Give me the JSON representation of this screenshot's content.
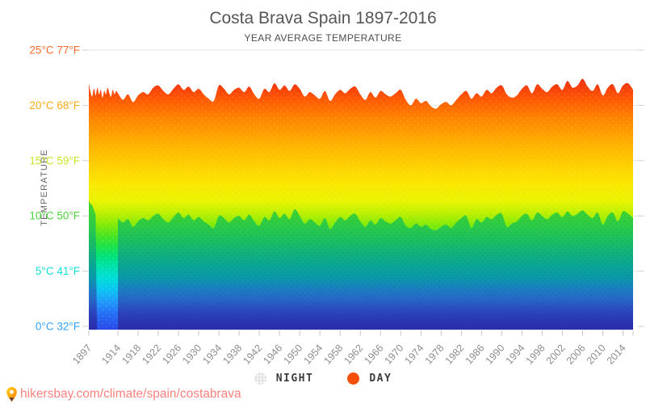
{
  "header": {
    "title": "Costa Brava Spain 1897-2016",
    "subtitle": "YEAR AVERAGE TEMPERATURE"
  },
  "chart_data": {
    "type": "area",
    "title": "Costa Brava Spain 1897-2016",
    "subtitle": "YEAR AVERAGE TEMPERATURE",
    "ylabel": "TEMPERATURE",
    "ylim": [
      0,
      25
    ],
    "grid": "horizontal gridlines every 5°C",
    "legend_position": "bottom",
    "x_range": [
      1897,
      2016
    ],
    "year_start": 1897,
    "night_data_gap": [
      1898,
      1913
    ],
    "x_axis_tick_years": [
      "1897",
      "1914",
      "1918",
      "1922",
      "1926",
      "1930",
      "1934",
      "1938",
      "1942",
      "1946",
      "1950",
      "1954",
      "1958",
      "1962",
      "1966",
      "1970",
      "1974",
      "1978",
      "1982",
      "1986",
      "1990",
      "1994",
      "1998",
      "2002",
      "2006",
      "2010",
      "2014"
    ],
    "y_axis_ticks": [
      {
        "value": 0,
        "label_c": "0°C",
        "label_f": "32°F",
        "color": "#31a3f5"
      },
      {
        "value": 5,
        "label_c": "5°C",
        "label_f": "41°F",
        "color": "#12dfdb"
      },
      {
        "value": 10,
        "label_c": "10°C",
        "label_f": "50°F",
        "color": "#4fd33c"
      },
      {
        "value": 15,
        "label_c": "15°C",
        "label_f": "59°F",
        "color": "#cde42f"
      },
      {
        "value": 20,
        "label_c": "20°C",
        "label_f": "68°F",
        "color": "#ffab19"
      },
      {
        "value": 25,
        "label_c": "25°C",
        "label_f": "77°F",
        "color": "#fb6d2e"
      }
    ],
    "series": [
      {
        "name": "DAY",
        "unit": "°C",
        "values": [
          22.0,
          21.2,
          20.8,
          21.5,
          20.9,
          21.6,
          21.0,
          21.4,
          20.7,
          21.3,
          21.0,
          21.6,
          21.1,
          20.8,
          21.4,
          21.0,
          21.3,
          21.1,
          20.5,
          21.0,
          20.3,
          20.9,
          21.2,
          21.0,
          21.6,
          21.8,
          21.3,
          21.0,
          21.5,
          21.9,
          21.4,
          21.7,
          21.2,
          21.5,
          21.0,
          20.6,
          20.4,
          21.8,
          21.5,
          21.0,
          21.4,
          21.6,
          21.2,
          21.7,
          21.0,
          20.6,
          21.5,
          21.2,
          22.0,
          21.4,
          21.8,
          21.3,
          21.9,
          21.5,
          20.8,
          21.2,
          20.9,
          20.6,
          21.3,
          20.4,
          21.0,
          21.4,
          21.1,
          21.5,
          21.7,
          21.0,
          20.5,
          21.2,
          20.7,
          21.3,
          21.0,
          20.8,
          21.1,
          21.4,
          20.5,
          20.0,
          20.6,
          20.2,
          20.4,
          19.9,
          19.7,
          20.1,
          20.3,
          20.0,
          20.5,
          21.0,
          21.3,
          20.6,
          21.1,
          20.8,
          21.4,
          21.1,
          21.6,
          21.8,
          21.0,
          20.7,
          20.9,
          21.5,
          21.8,
          21.1,
          21.9,
          21.5,
          21.2,
          21.7,
          21.9,
          21.4,
          22.2,
          21.6,
          21.8,
          22.4,
          21.7,
          21.3,
          21.9,
          20.9,
          21.6,
          21.9,
          21.1,
          21.8,
          22.0,
          21.4
        ]
      },
      {
        "name": "NIGHT",
        "unit": "°C",
        "values": [
          11.3,
          null,
          null,
          null,
          null,
          null,
          null,
          null,
          null,
          null,
          null,
          null,
          null,
          null,
          null,
          null,
          null,
          9.8,
          9.4,
          9.7,
          9.0,
          9.5,
          9.8,
          9.6,
          10.0,
          10.2,
          9.7,
          9.4,
          9.9,
          10.3,
          9.8,
          10.1,
          9.6,
          9.9,
          9.5,
          9.2,
          8.9,
          10.0,
          9.8,
          9.4,
          9.8,
          10.0,
          9.6,
          10.1,
          9.5,
          9.1,
          9.9,
          9.6,
          10.4,
          9.8,
          10.2,
          9.7,
          10.6,
          10.0,
          9.3,
          9.7,
          9.4,
          9.1,
          9.8,
          8.8,
          9.4,
          9.9,
          9.6,
          10.0,
          10.2,
          9.5,
          9.0,
          9.6,
          9.2,
          9.8,
          9.5,
          9.3,
          9.6,
          9.9,
          9.1,
          8.9,
          9.3,
          9.0,
          9.2,
          8.8,
          8.7,
          9.0,
          9.2,
          8.9,
          9.4,
          9.8,
          10.0,
          8.9,
          9.7,
          9.4,
          9.9,
          9.7,
          10.1,
          10.2,
          9.0,
          9.3,
          9.5,
          10.0,
          10.2,
          9.6,
          10.3,
          10.0,
          9.7,
          10.1,
          10.3,
          9.9,
          10.4,
          10.0,
          10.2,
          10.5,
          10.1,
          9.8,
          10.3,
          9.2,
          10.0,
          10.3,
          9.5,
          10.4,
          10.2,
          9.8
        ]
      }
    ],
    "day_gradient": [
      [
        0.0,
        "#cf1506"
      ],
      [
        0.08,
        "#e62811"
      ],
      [
        0.13,
        "#f53c0c"
      ],
      [
        0.18,
        "#fe5c02"
      ],
      [
        0.25,
        "#ff8800"
      ],
      [
        0.33,
        "#ffae00"
      ],
      [
        0.41,
        "#ffcf00"
      ],
      [
        0.48,
        "#fbe800"
      ],
      [
        0.54,
        "#e9f400"
      ],
      [
        0.58,
        "#c0f000"
      ],
      [
        0.62,
        "#8aeb06"
      ],
      [
        0.66,
        "#50e51e"
      ],
      [
        0.7,
        "#1ce246"
      ],
      [
        0.74,
        "#00e27c"
      ],
      [
        0.78,
        "#00e2b4"
      ],
      [
        0.82,
        "#00dcdc"
      ],
      [
        0.86,
        "#0cc2f2"
      ],
      [
        0.9,
        "#1f9bfa"
      ],
      [
        0.94,
        "#2472f5"
      ],
      [
        1.0,
        "#2a48e8"
      ]
    ],
    "night_gradient": [
      [
        0.0,
        "#4bd52b"
      ],
      [
        0.1,
        "#3ad136"
      ],
      [
        0.2,
        "#2aca49"
      ],
      [
        0.3,
        "#1cbf60"
      ],
      [
        0.4,
        "#12b27b"
      ],
      [
        0.5,
        "#0aa694"
      ],
      [
        0.6,
        "#0b97ab"
      ],
      [
        0.68,
        "#1a7fc0"
      ],
      [
        0.76,
        "#2767c8"
      ],
      [
        0.84,
        "#2b4cc0"
      ],
      [
        0.92,
        "#2b38b4"
      ],
      [
        1.0,
        "#2a2dac"
      ]
    ],
    "gridline_color": "#e6e6e6",
    "tick_color": "#c4c4c4",
    "x_label_color": "#8d8d8d"
  },
  "legend": {
    "items": [
      {
        "label": "NIGHT",
        "color": "#f1f1f1"
      },
      {
        "label": "DAY",
        "color": "#f4500c"
      }
    ]
  },
  "footer": {
    "link": "hikersbay.com/climate/spain/costabrava",
    "link_color": "#f9827f"
  }
}
